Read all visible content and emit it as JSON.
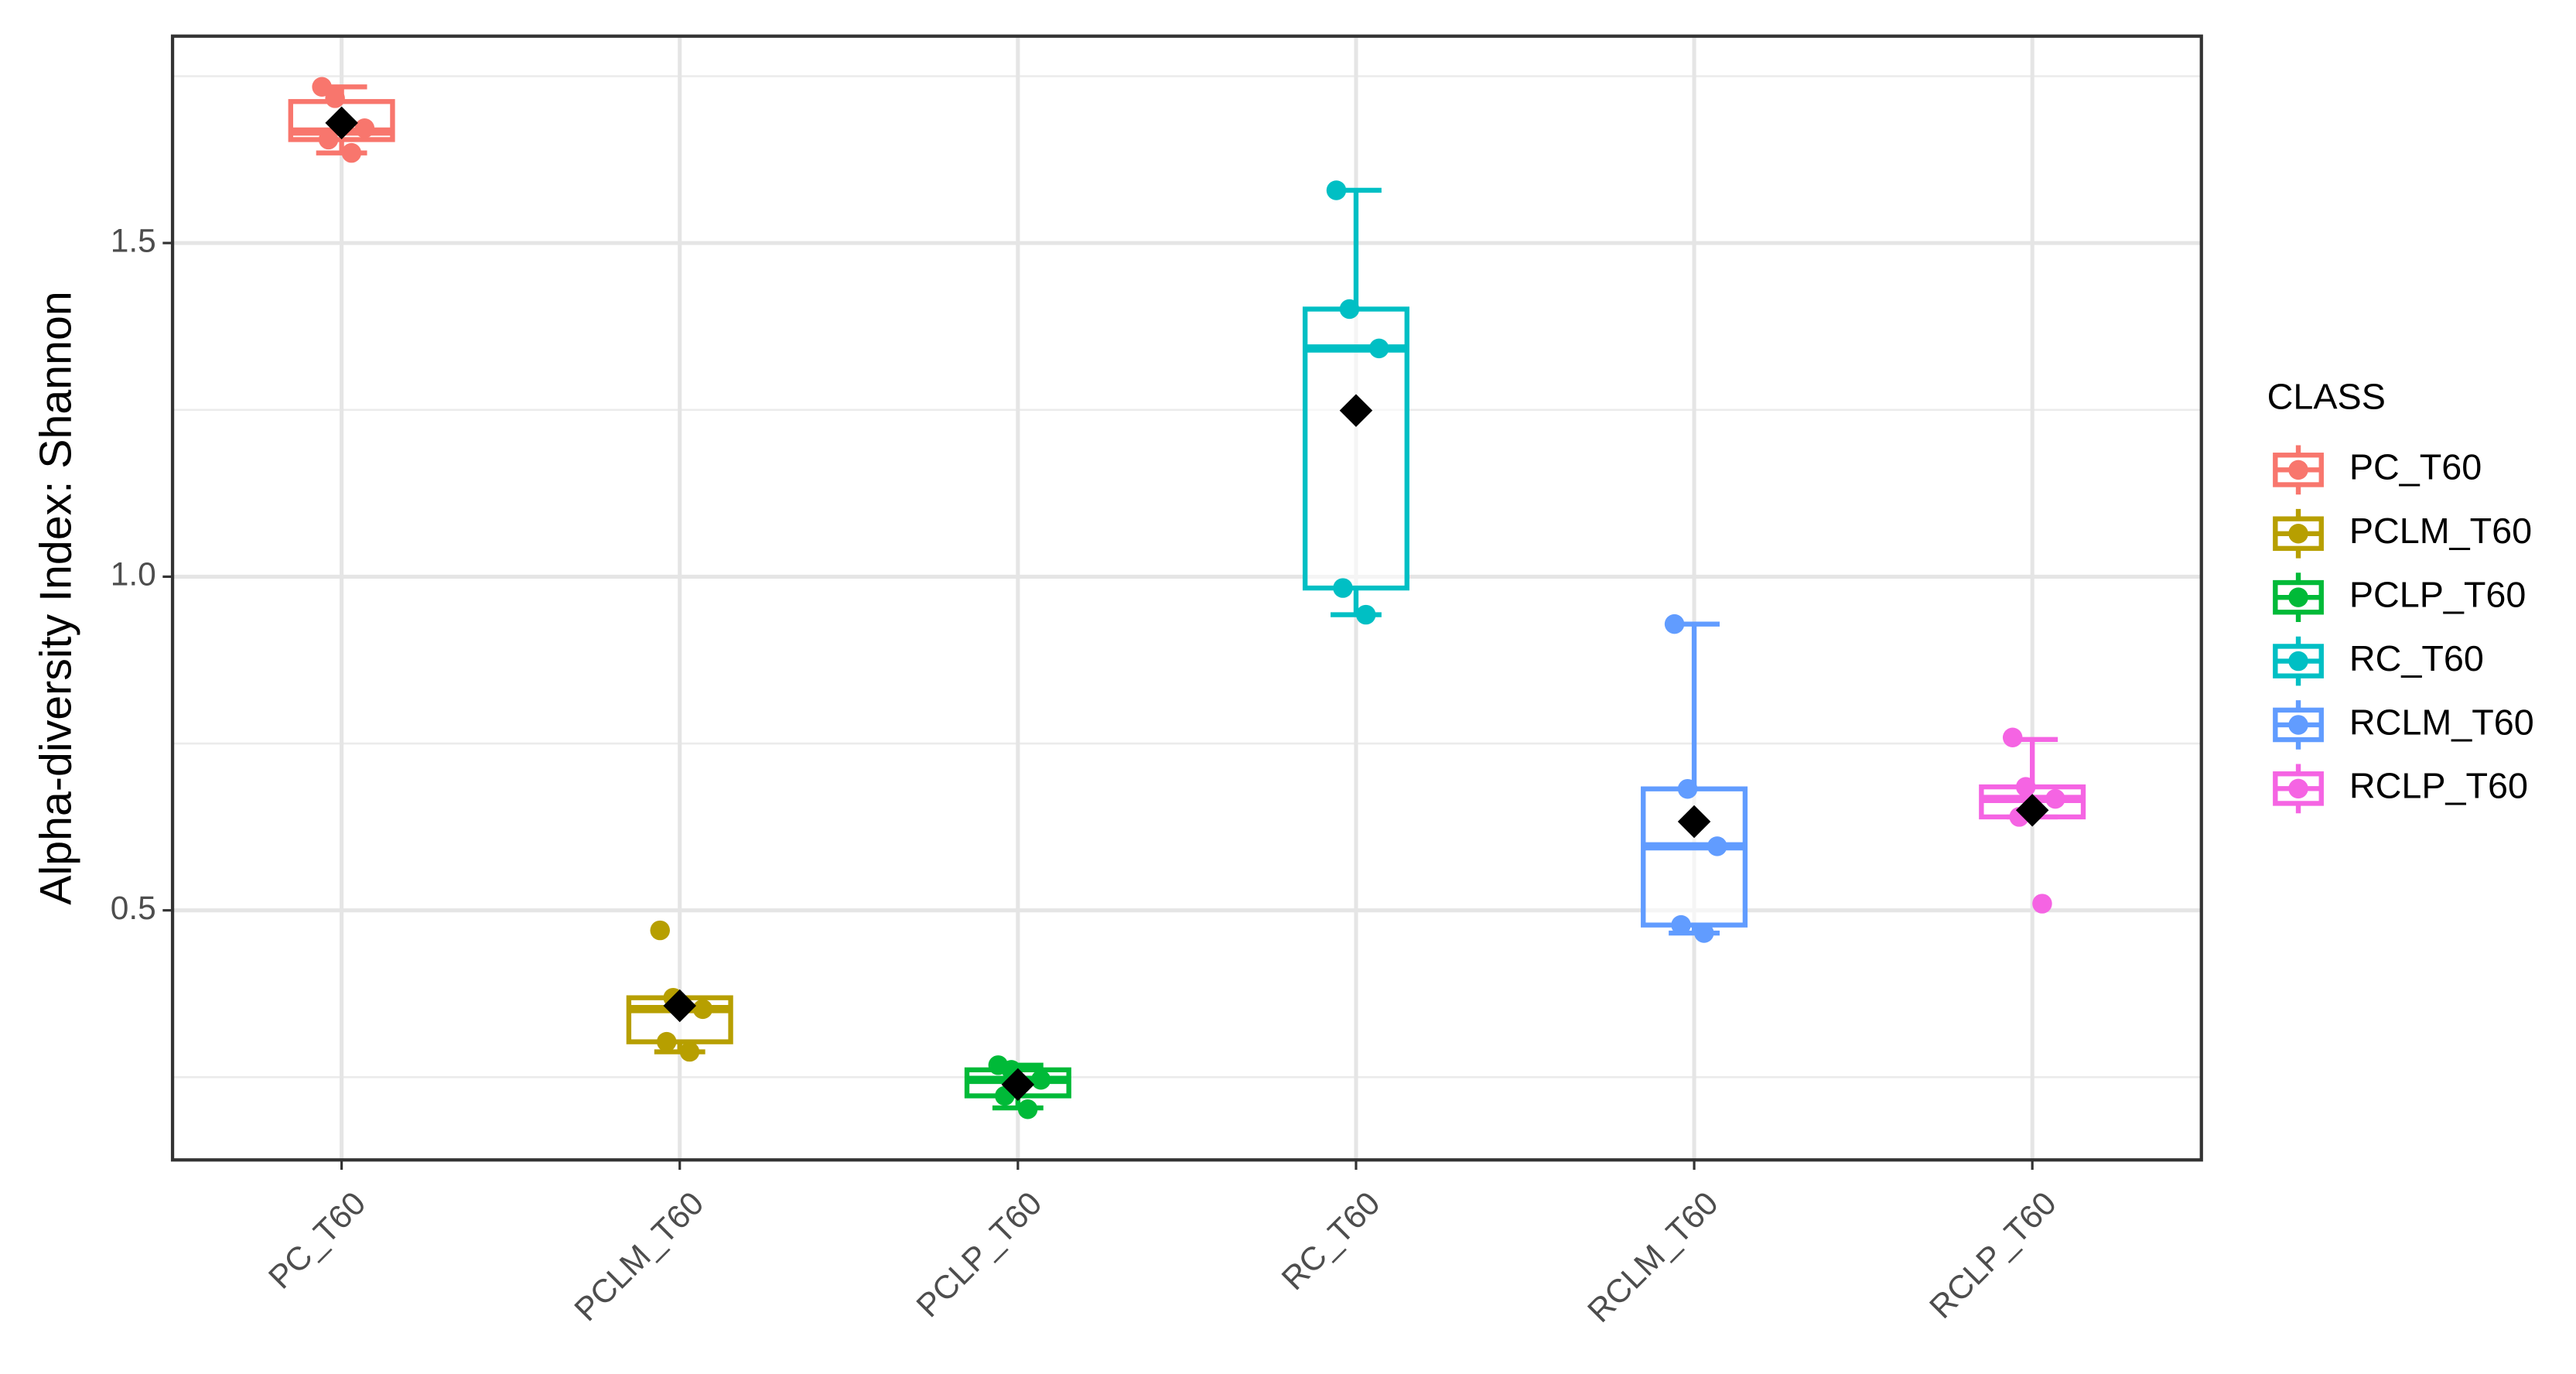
{
  "chart_data": {
    "type": "box",
    "y_label": "Alpha-diversity Index: Shannon",
    "categories": [
      "PC_T60",
      "PCLM_T60",
      "PCLP_T60",
      "RC_T60",
      "RCLM_T60",
      "RCLP_T60"
    ],
    "ylim": [
      0.126,
      1.81
    ],
    "yticks": [
      {
        "value": 0.5,
        "label": "0.5"
      },
      {
        "value": 1.0,
        "label": "1.0"
      },
      {
        "value": 1.5,
        "label": "1.5"
      }
    ],
    "minor_yticks": [
      0.25,
      0.75,
      1.25,
      1.75
    ],
    "grid": true,
    "legend_title": "CLASS",
    "legend_position": "right",
    "series": [
      {
        "name": "PC_T60",
        "color": "#f8766d",
        "whisker_low": 1.635,
        "q1": 1.655,
        "median": 1.667,
        "q3": 1.712,
        "whisker_high": 1.734,
        "mean": 1.68,
        "points": [
          1.734,
          1.717,
          1.672,
          1.655,
          1.635
        ]
      },
      {
        "name": "PCLM_T60",
        "color": "#b79f00",
        "whisker_low": 0.288,
        "q1": 0.303,
        "median": 0.352,
        "q3": 0.369,
        "whisker_high": 0.369,
        "mean": 0.357,
        "points": [
          0.47,
          0.369,
          0.352,
          0.303,
          0.288
        ]
      },
      {
        "name": "PCLP_T60",
        "color": "#00ba38",
        "whisker_low": 0.204,
        "q1": 0.222,
        "median": 0.246,
        "q3": 0.261,
        "whisker_high": 0.268,
        "mean": 0.239,
        "points": [
          0.268,
          0.261,
          0.246,
          0.222,
          0.202
        ]
      },
      {
        "name": "RC_T60",
        "color": "#00bfc4",
        "whisker_low": 0.943,
        "q1": 0.983,
        "median": 1.342,
        "q3": 1.401,
        "whisker_high": 1.579,
        "mean": 1.249,
        "points": [
          1.579,
          1.401,
          1.342,
          0.983,
          0.943
        ]
      },
      {
        "name": "RCLM_T60",
        "color": "#619cff",
        "whisker_low": 0.466,
        "q1": 0.478,
        "median": 0.596,
        "q3": 0.682,
        "whisker_high": 0.929,
        "mean": 0.633,
        "points": [
          0.929,
          0.682,
          0.596,
          0.478,
          0.466
        ]
      },
      {
        "name": "RCLP_T60",
        "color": "#f564e3",
        "whisker_low": 0.64,
        "q1": 0.64,
        "median": 0.667,
        "q3": 0.685,
        "whisker_high": 0.756,
        "mean": 0.65,
        "points": [
          0.759,
          0.685,
          0.667,
          0.64,
          0.51
        ]
      }
    ]
  }
}
